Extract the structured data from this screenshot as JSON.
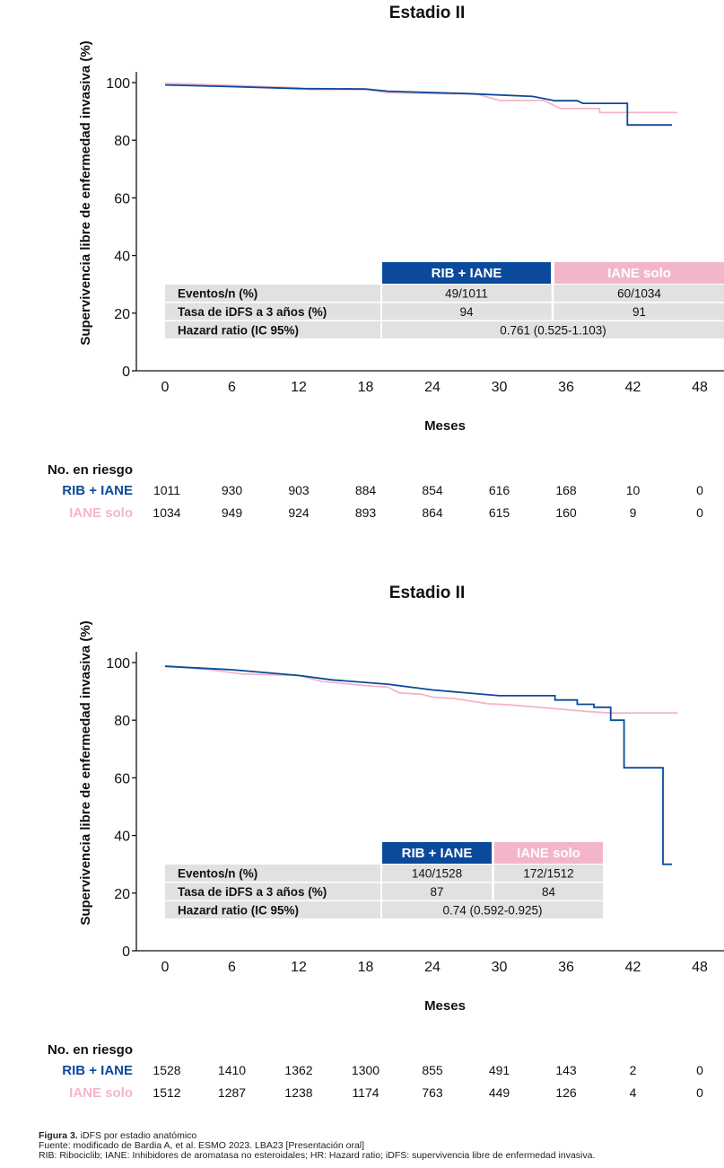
{
  "colors": {
    "rib": "#0b4a9b",
    "iane": "#f3b6c9",
    "table_bg": "#e1e1e1"
  },
  "chart_data": [
    {
      "type": "line",
      "title": "Estadio II",
      "xlabel": "Meses",
      "ylabel": "Supervivencia libre de enfermedad invasiva (%)",
      "xlim": [
        0,
        48
      ],
      "ylim": [
        0,
        100
      ],
      "x_ticks": [
        0,
        6,
        12,
        18,
        24,
        30,
        36,
        42,
        48
      ],
      "y_ticks": [
        0,
        20,
        40,
        60,
        80,
        100
      ],
      "series": [
        {
          "name": "RIB + IANE",
          "color": "#0b4a9b",
          "points": [
            [
              0,
              99.2
            ],
            [
              6,
              98.6
            ],
            [
              12,
              97.9
            ],
            [
              18,
              97.8
            ],
            [
              20,
              97.0
            ],
            [
              24,
              96.5
            ],
            [
              27,
              96.2
            ],
            [
              33,
              95.2
            ],
            [
              35,
              93.7
            ],
            [
              37,
              93.7
            ],
            [
              37.5,
              92.8
            ],
            [
              41.5,
              92.8
            ],
            [
              41.5,
              85.3
            ],
            [
              45.5,
              85.3
            ]
          ]
        },
        {
          "name": "IANE solo",
          "color": "#f3b6c9",
          "points": [
            [
              0,
              99.8
            ],
            [
              6,
              99.0
            ],
            [
              12,
              98.2
            ],
            [
              13,
              97.6
            ],
            [
              18,
              97.6
            ],
            [
              20,
              96.5
            ],
            [
              24,
              96.2
            ],
            [
              28,
              96.0
            ],
            [
              30,
              93.8
            ],
            [
              34,
              93.8
            ],
            [
              35.5,
              91.0
            ],
            [
              39,
              91.0
            ],
            [
              39,
              89.6
            ],
            [
              46,
              89.6
            ]
          ]
        }
      ],
      "table": {
        "headers": [
          "RIB + IANE",
          "IANE solo"
        ],
        "rows": [
          {
            "label": "Eventos/n (%)",
            "rib": "49/1011",
            "iane": "60/1034"
          },
          {
            "label": "Tasa de iDFS a 3 años (%)",
            "rib": "94",
            "iane": "91"
          }
        ],
        "hr_label": "Hazard ratio (IC 95%)",
        "hr_value": "0.761 (0.525-1.103)"
      },
      "risk": {
        "title": "No. en riesgo",
        "rows": [
          {
            "name": "RIB + IANE",
            "values": [
              "1011",
              "930",
              "903",
              "884",
              "854",
              "616",
              "168",
              "10",
              "0"
            ]
          },
          {
            "name": "IANE solo",
            "values": [
              "1034",
              "949",
              "924",
              "893",
              "864",
              "615",
              "160",
              "9",
              "0"
            ]
          }
        ]
      }
    },
    {
      "type": "line",
      "title": "Estadio II",
      "xlabel": "Meses",
      "ylabel": "Supervivencia libre de enfermedad invasiva (%)",
      "xlim": [
        0,
        48
      ],
      "ylim": [
        0,
        100
      ],
      "x_ticks": [
        0,
        6,
        12,
        18,
        24,
        30,
        36,
        42,
        48
      ],
      "y_ticks": [
        0,
        20,
        40,
        60,
        80,
        100
      ],
      "series": [
        {
          "name": "RIB + IANE",
          "color": "#0b4a9b",
          "points": [
            [
              0,
              98.7
            ],
            [
              6,
              97.5
            ],
            [
              12,
              95.5
            ],
            [
              15,
              94.0
            ],
            [
              20,
              92.5
            ],
            [
              24,
              90.5
            ],
            [
              30,
              88.5
            ],
            [
              35,
              88.5
            ],
            [
              35,
              87.0
            ],
            [
              37,
              87.0
            ],
            [
              37,
              85.5
            ],
            [
              38.5,
              85.5
            ],
            [
              38.5,
              84.5
            ],
            [
              40,
              84.5
            ],
            [
              40,
              80.0
            ],
            [
              41.2,
              80.0
            ],
            [
              41.2,
              63.5
            ],
            [
              44.7,
              63.5
            ],
            [
              44.7,
              30.0
            ],
            [
              45.5,
              30.0
            ]
          ]
        },
        {
          "name": "IANE solo",
          "color": "#f3b6c9",
          "points": [
            [
              0,
              98.9
            ],
            [
              4,
              97.5
            ],
            [
              7,
              96.0
            ],
            [
              12,
              95.5
            ],
            [
              14,
              93.5
            ],
            [
              18,
              92.0
            ],
            [
              20,
              91.5
            ],
            [
              21,
              89.5
            ],
            [
              23,
              89.0
            ],
            [
              24,
              88.0
            ],
            [
              26,
              87.5
            ],
            [
              29,
              85.7
            ],
            [
              31,
              85.3
            ],
            [
              35,
              84.0
            ],
            [
              38,
              83.0
            ],
            [
              40,
              82.5
            ],
            [
              46,
              82.5
            ]
          ]
        }
      ],
      "table": {
        "headers": [
          "RIB + IANE",
          "IANE solo"
        ],
        "rows": [
          {
            "label": "Eventos/n (%)",
            "rib": "140/1528",
            "iane": "172/1512"
          },
          {
            "label": "Tasa de iDFS a 3 años (%)",
            "rib": "87",
            "iane": "84"
          }
        ],
        "hr_label": "Hazard ratio (IC 95%)",
        "hr_value": "0.74 (0.592-0.925)"
      },
      "risk": {
        "title": "No. en riesgo",
        "rows": [
          {
            "name": "RIB + IANE",
            "values": [
              "1528",
              "1410",
              "1362",
              "1300",
              "855",
              "491",
              "143",
              "2",
              "0"
            ]
          },
          {
            "name": "IANE solo",
            "values": [
              "1512",
              "1287",
              "1238",
              "1174",
              "763",
              "449",
              "126",
              "4",
              "0"
            ]
          }
        ]
      }
    }
  ],
  "caption": {
    "figure_label": "Figura 3.",
    "figure_text": " iDFS por estadio anatómico",
    "source": "Fuente: modificado de Bardia A, et al. ESMO 2023. LBA23 [Presentación oral]",
    "abbreviations": "RIB: Ribociclib; IANE: Inhibidores de aromatasa no esteroidales; HR: Hazard ratio; iDFS: supervivencia libre de enfermedad invasiva."
  }
}
